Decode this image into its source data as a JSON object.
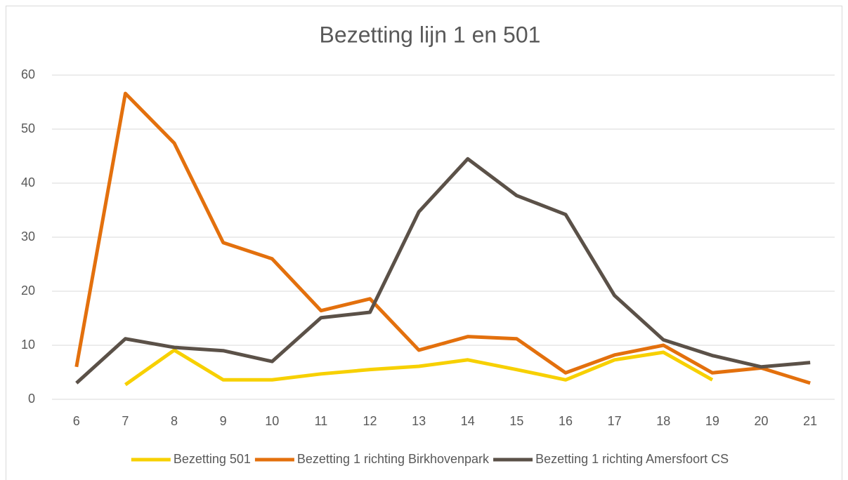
{
  "chart_data": {
    "type": "line",
    "title": "Bezetting lijn 1 en 501",
    "categories": [
      "6",
      "7",
      "8",
      "9",
      "10",
      "11",
      "12",
      "13",
      "14",
      "15",
      "16",
      "17",
      "18",
      "19",
      "20",
      "21"
    ],
    "series": [
      {
        "name": "Bezetting 501",
        "color": "#f7d000",
        "values": [
          null,
          2.7,
          9.1,
          3.6,
          3.6,
          4.7,
          5.5,
          6.1,
          7.3,
          5.5,
          3.6,
          7.3,
          8.7,
          3.6,
          null,
          null
        ]
      },
      {
        "name": "Bezetting 1 richting Birkhovenpark",
        "color": "#e3700d",
        "values": [
          6,
          56.6,
          47.4,
          29,
          26,
          16.4,
          18.6,
          9.1,
          11.6,
          11.2,
          4.9,
          8.2,
          10,
          4.9,
          5.8,
          3
        ]
      },
      {
        "name": "Bezetting 1 richting Amersfoort CS",
        "color": "#5b5148",
        "values": [
          3,
          11.2,
          9.6,
          9,
          7,
          15.1,
          16.1,
          34.7,
          44.5,
          37.7,
          34.2,
          19.2,
          11,
          8.1,
          6,
          6.8
        ]
      }
    ],
    "ylim": [
      0,
      60
    ],
    "yticks": [
      0,
      10,
      20,
      30,
      40,
      50,
      60
    ],
    "grid": true,
    "legend": "bottom"
  }
}
